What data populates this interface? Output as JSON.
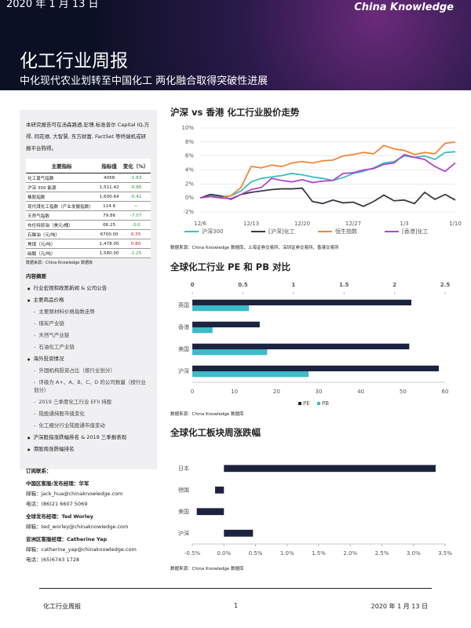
{
  "header": {
    "date": "2020 年 1 月 13 日",
    "logo": "China Knowledge",
    "title": "化工行业周报",
    "subtitle": "中化现代农业划转至中国化工 两化融合取得突破性进展"
  },
  "sidebar": {
    "intro": "本研究报告可在汤森路透,彭博,标准普尔 Capital IQ,万得, 同花顺, 大智慧, 东方财富, FactSet 等终端机或研报平台购得。",
    "table": {
      "columns": [
        "主要指标",
        "指标值",
        "变化（%）"
      ],
      "rows": [
        [
          "化工景气指数",
          "4058",
          "-1.83"
        ],
        [
          "沪深 300 能源",
          "1,511.42",
          "-0.86"
        ],
        [
          "橡胶指数",
          "1,600.64",
          "-0.42"
        ],
        [
          "现代煤化工指数（产业发展指数）",
          "114.6",
          "--"
        ],
        [
          "天然气指数",
          "79.86",
          "-7.07"
        ],
        [
          "布伦特原油（美元/桶）",
          "66.25",
          "-3.0"
        ],
        [
          "石脑油（元/吨）",
          "6700.00",
          "6.35"
        ],
        [
          "焦煤（元/吨）",
          "1,478.00",
          "0.80"
        ],
        [
          "硝酸（元/吨）",
          "1,580.00",
          "-1.25"
        ]
      ],
      "source": "数据来源：China Knowledge 数据库"
    },
    "contents": {
      "title": "内容摘要",
      "items": [
        {
          "text": "行业宏观和政策新闻 & 公司公告",
          "sub": []
        },
        {
          "text": "主要商品价格",
          "sub": [
            "主要原材料价格指数走势",
            "煤炭产业链",
            "天然气产业链",
            "石油化工产业链"
          ]
        },
        {
          "text": "海外投资情况",
          "sub": [
            "外国机构投资占比（按行业划分）",
            "评级为 A+、A、B、C、D 的公司数量（按行业划分）",
            "2019 三季度化工行业 EFII 持股",
            "陆股通持股市值变化",
            "化工细分行业陆股通市值变动"
          ]
        },
        {
          "text": "沪深股指涨跌幅排名 & 2019 三季报表现",
          "sub": []
        },
        {
          "text": "港股周涨跌幅排名",
          "sub": []
        }
      ]
    },
    "contacts": {
      "title": "订阅联系：",
      "people": [
        {
          "role": "中国区客服/发布经理：华军",
          "lines": [
            "邮箱：jack_hua@chinaknowledge.com",
            "电话：(86)21 6607 5069"
          ]
        },
        {
          "role": "全球发布经理：Ted Worley",
          "lines": [
            "邮箱：ted_worley@chinaknowledge.com"
          ]
        },
        {
          "role": "亚洲区客服经理：Catherine Yap",
          "lines": [
            "邮箱：catherine_yap@chinaknowledge.com",
            "电话：(65)6743 1728"
          ]
        }
      ]
    }
  },
  "chart_data": [
    {
      "type": "line",
      "title": "沪深 vs 香港 化工行业股价走势",
      "source": "数据来源：China Knowledge 数据库，上海证券交易所，深圳证券交易所，香港交易所",
      "categories": [
        "12/6",
        null,
        null,
        null,
        null,
        "12/13",
        null,
        null,
        null,
        null,
        "12/20",
        null,
        null,
        null,
        null,
        "12/27",
        null,
        null,
        null,
        null,
        "1/3",
        null,
        null,
        null,
        null,
        "1/10"
      ],
      "ylim": [
        -2,
        10
      ],
      "yticks": [
        {
          "value": -2,
          "label": "-2%"
        },
        {
          "value": 0,
          "label": "0%"
        },
        {
          "value": 2,
          "label": "2%"
        },
        {
          "value": 4,
          "label": "4%"
        },
        {
          "value": 6,
          "label": "6%"
        },
        {
          "value": 8,
          "label": "8%"
        },
        {
          "value": 10,
          "label": "10%"
        }
      ],
      "grid": true,
      "series": [
        {
          "name": "沪深300",
          "color": "#3cbcc8",
          "values": [
            0,
            0.3,
            0.2,
            0.3,
            1,
            2.3,
            2.8,
            3,
            3.2,
            3.5,
            3.3,
            3,
            2.8,
            2.5,
            2.9,
            3.5,
            3.8,
            4.3,
            5,
            5.2,
            6,
            5.8,
            6,
            5.5,
            6.5,
            6.6
          ]
        },
        {
          "name": "[沪深]化工",
          "color": "#3a3a48",
          "values": [
            0,
            0.5,
            0.3,
            -0.2,
            0.5,
            0.8,
            1,
            1.2,
            1.3,
            1.3,
            1.4,
            -0.5,
            -0.8,
            -0.3,
            -0.7,
            -0.6,
            -1.2,
            -0.5,
            0.4,
            -0.4,
            -0.3,
            -0.8,
            0.8,
            -0.2,
            0.5,
            -0.3
          ]
        },
        {
          "name": "恒生指数",
          "color": "#f0883a",
          "values": [
            0,
            0.2,
            0,
            0.3,
            1.5,
            4.5,
            4.3,
            4.7,
            4.5,
            5,
            5.2,
            5,
            5.3,
            5.4,
            6,
            6.2,
            6.5,
            6.3,
            7.5,
            7,
            6.8,
            6.2,
            6.5,
            6.3,
            7.8,
            8
          ]
        },
        {
          "name": "[香港]化工",
          "color": "#b048c8",
          "values": [
            0,
            0.2,
            0,
            -0.1,
            0.5,
            1.2,
            1.5,
            2.8,
            2.5,
            2.3,
            2.6,
            2.2,
            2.4,
            2.5,
            3.5,
            3.6,
            4,
            4.2,
            4.8,
            5,
            6.2,
            5.8,
            5.5,
            4.5,
            3.8,
            5
          ]
        }
      ]
    },
    {
      "type": "hbar",
      "title": "全球化工行业 PE 和 PB 对比",
      "source": "数据来源：China Knowledge 数据库",
      "categories": [
        "英国",
        "香港",
        "美国",
        "沪深"
      ],
      "xlim": [
        0,
        60
      ],
      "xticks": [
        0,
        10,
        20,
        30,
        40,
        50,
        60
      ],
      "x2lim": [
        0,
        2.5
      ],
      "x2ticks": [
        0,
        0.5,
        1,
        1.5,
        2,
        2.5
      ],
      "series": [
        {
          "name": "PE",
          "color": "#1c2340",
          "values": [
            52,
            16,
            51.5,
            58.5
          ]
        },
        {
          "name": "PB",
          "color": "#3cbcc8",
          "axis": "x2",
          "values": [
            0.56,
            0.2,
            0.74,
            1.15
          ]
        }
      ]
    },
    {
      "type": "hbar",
      "title": "全球化工板块周涨跌幅",
      "source": "数据来源：China Knowledge 数据库",
      "categories": [
        "日本",
        "德国",
        "美国",
        "沪深"
      ],
      "xlim": [
        -0.5,
        3.5
      ],
      "xticks": [
        {
          "value": -0.5,
          "label": "-0.5%"
        },
        {
          "value": 0,
          "label": "0.0%"
        },
        {
          "value": 0.5,
          "label": "0.5%"
        },
        {
          "value": 1,
          "label": "1.0%"
        },
        {
          "value": 1.5,
          "label": "1.5%"
        },
        {
          "value": 2,
          "label": "2.0%"
        },
        {
          "value": 2.5,
          "label": "2.5%"
        },
        {
          "value": 3,
          "label": "3.0%"
        },
        {
          "value": 3.5,
          "label": "3.5%"
        }
      ],
      "series": [
        {
          "name": "周涨跌幅",
          "color": "#1c2340",
          "values": [
            3.35,
            -0.14,
            -0.43,
            0.46
          ]
        }
      ]
    }
  ],
  "footer": {
    "left": "化工行业周报",
    "page": "1",
    "right": "2020 年 1 月 13 日"
  }
}
